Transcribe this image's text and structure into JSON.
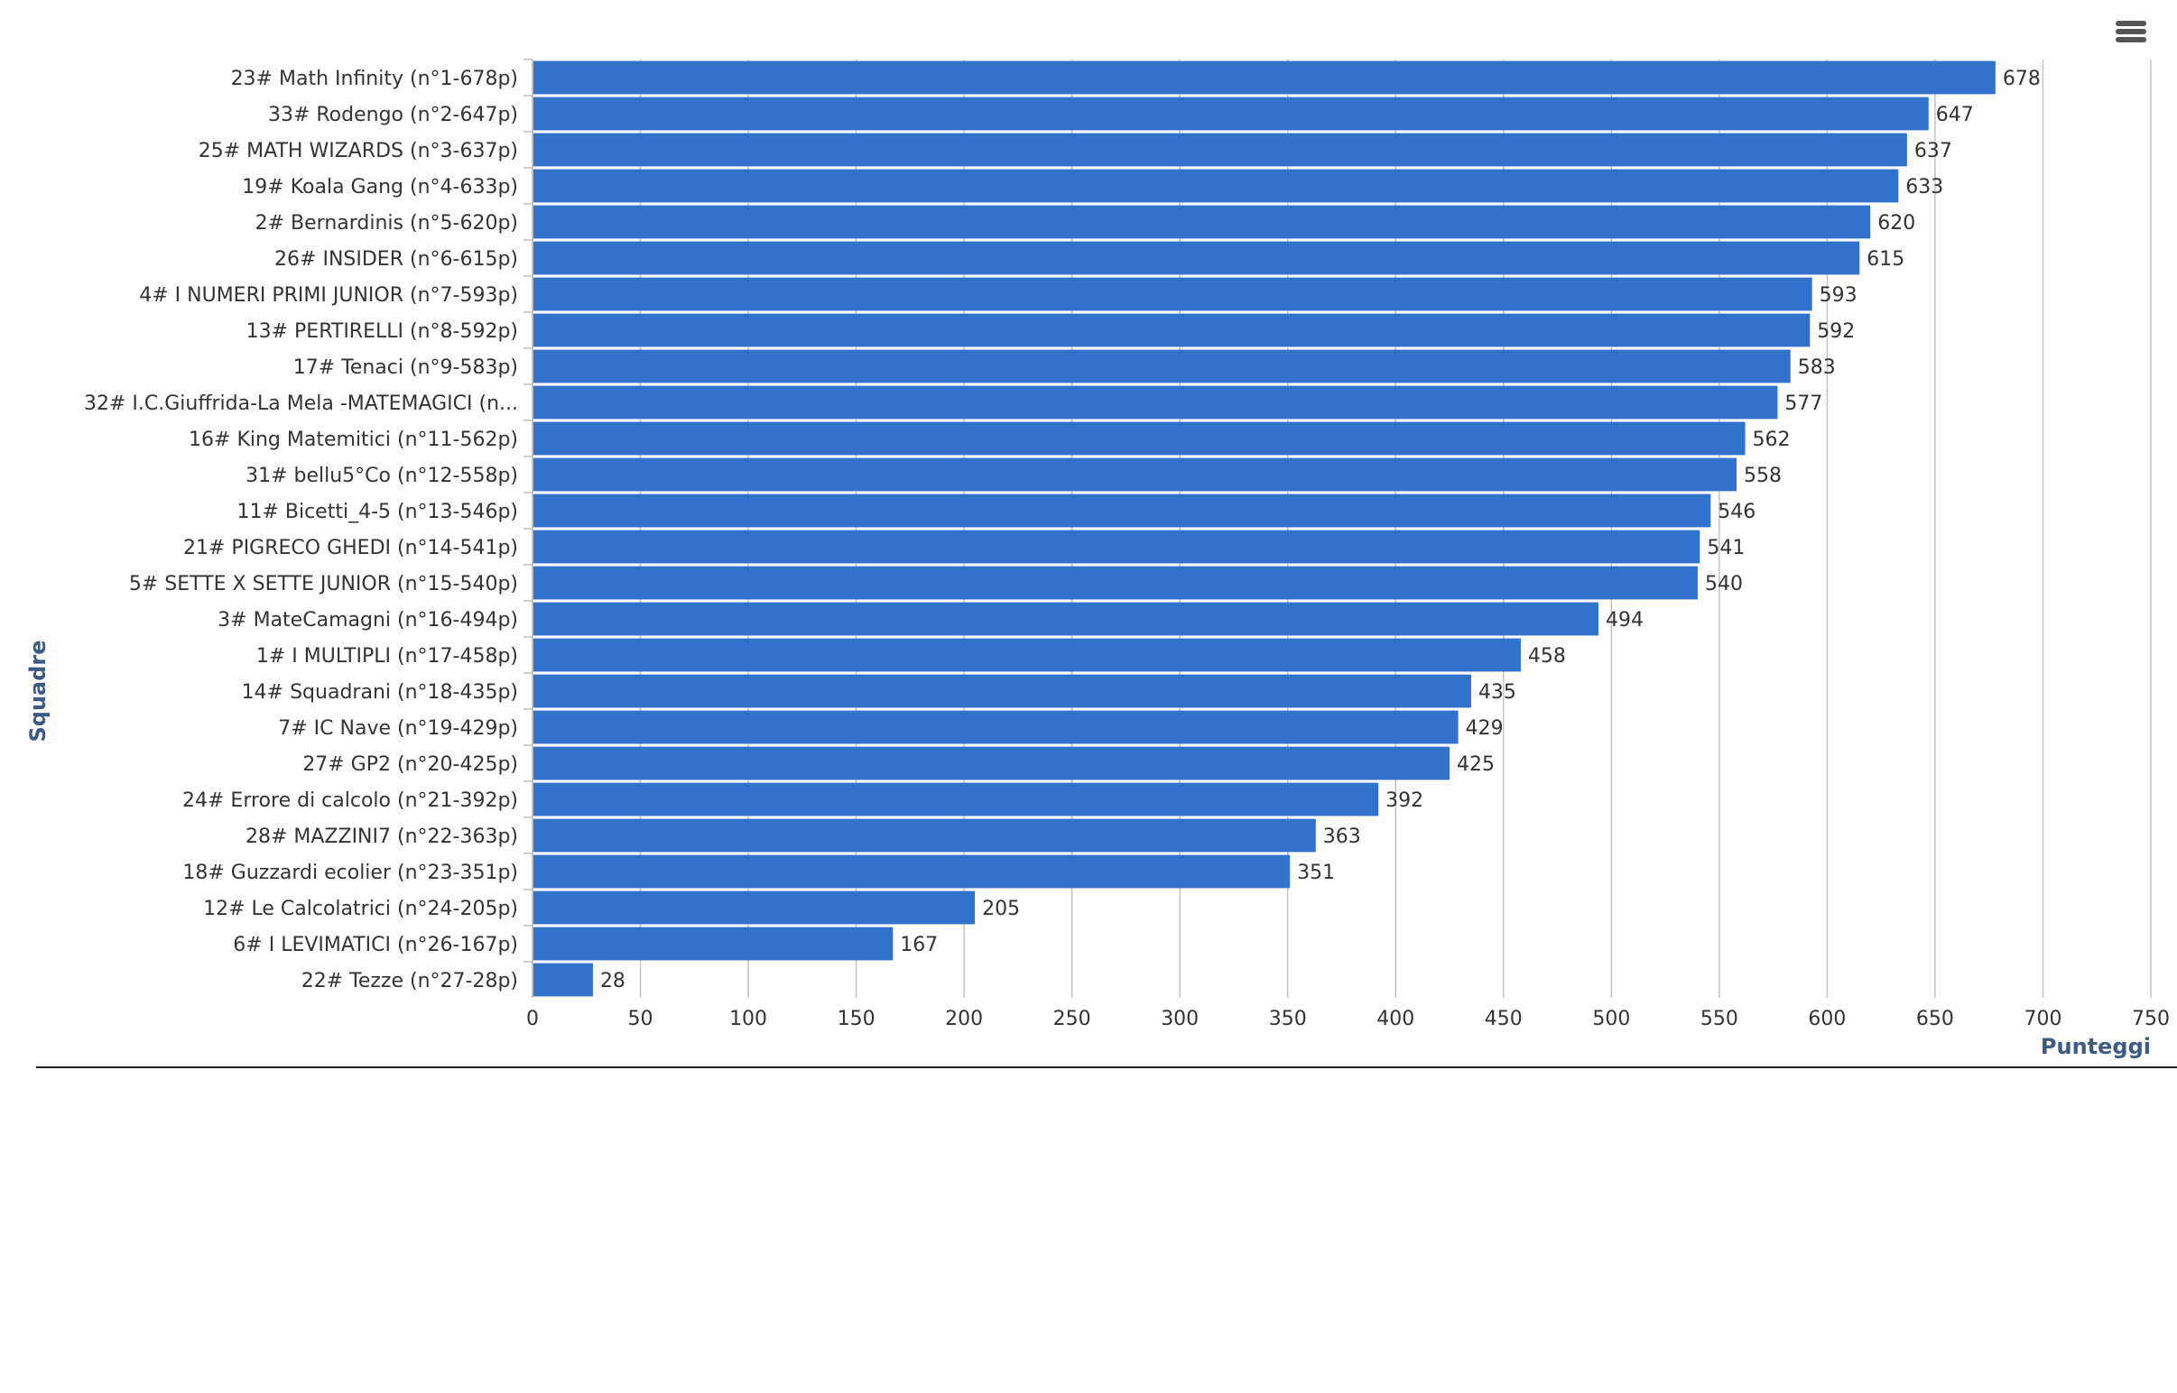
{
  "menu": {
    "icon": "hamburger-menu-icon",
    "label": ""
  },
  "colors": {
    "bar": "#3172cd",
    "axis_title": "#3d5a84",
    "label_text": "#333333",
    "grid": "#c3c3c3",
    "axis_line": "#c0c0c0",
    "baseline": "#222222"
  },
  "chart_data": {
    "type": "bar",
    "orientation": "horizontal",
    "xlabel": "Punteggi",
    "ylabel": "Squadre",
    "xlim": [
      0,
      750
    ],
    "xticks": [
      0,
      50,
      100,
      150,
      200,
      250,
      300,
      350,
      400,
      450,
      500,
      550,
      600,
      650,
      700,
      750
    ],
    "grid": "vertical gridlines",
    "data_labels": true,
    "categories": [
      "23# Math Infinity (n°1-678p)",
      "33# Rodengo (n°2-647p)",
      "25# MATH WIZARDS (n°3-637p)",
      "19# Koala Gang (n°4-633p)",
      "2# Bernardinis (n°5-620p)",
      "26# INSIDER (n°6-615p)",
      "4# I NUMERI PRIMI JUNIOR (n°7-593p)",
      "13# PERTIRELLI (n°8-592p)",
      "17# Tenaci (n°9-583p)",
      "32# I.C.Giuffrida-La Mela -MATEMAGICI (n...",
      "16# King Matemitici (n°11-562p)",
      "31# bellu5°Co (n°12-558p)",
      "11# Bicetti_4-5 (n°13-546p)",
      "21# PIGRECO GHEDI (n°14-541p)",
      "5# SETTE X SETTE JUNIOR (n°15-540p)",
      "3# MateCamagni (n°16-494p)",
      "1# I MULTIPLI (n°17-458p)",
      "14# Squadrani (n°18-435p)",
      "7# IC Nave (n°19-429p)",
      "27# GP2 (n°20-425p)",
      "24# Errore di calcolo (n°21-392p)",
      "28# MAZZINI7 (n°22-363p)",
      "18# Guzzardi ecolier (n°23-351p)",
      "12# Le Calcolatrici (n°24-205p)",
      "6# I LEVIMATICI (n°26-167p)",
      "22# Tezze (n°27-28p)"
    ],
    "values": [
      678,
      647,
      637,
      633,
      620,
      615,
      593,
      592,
      583,
      577,
      562,
      558,
      546,
      541,
      540,
      494,
      458,
      435,
      429,
      425,
      392,
      363,
      351,
      205,
      167,
      28
    ]
  }
}
